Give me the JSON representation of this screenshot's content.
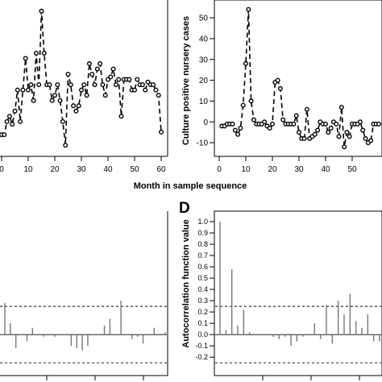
{
  "shared": {
    "xlabel": "Month in sample sequence"
  },
  "chart_data": [
    {
      "id": "left-series",
      "type": "line",
      "xlabel": "",
      "ylabel": "",
      "x_ticks": [
        0,
        10,
        20,
        30,
        40,
        50,
        60
      ],
      "ylim": [
        -2,
        55
      ],
      "x": [
        0,
        1,
        2,
        3,
        4,
        5,
        6,
        7,
        8,
        9,
        10,
        11,
        12,
        13,
        14,
        15,
        16,
        17,
        18,
        19,
        20,
        21,
        22,
        23,
        24,
        25,
        26,
        27,
        28,
        29,
        30,
        31,
        32,
        33,
        34,
        35,
        36,
        37,
        38,
        39,
        40,
        41,
        42,
        43,
        44,
        45,
        46,
        47,
        48,
        49,
        50,
        51,
        52,
        53,
        54,
        55,
        56,
        57,
        58,
        59,
        60
      ],
      "y": [
        5,
        5,
        10,
        12,
        9,
        14,
        22,
        10,
        22,
        34,
        22,
        24,
        18,
        36,
        24,
        52,
        36,
        24,
        24,
        18,
        20,
        24,
        18,
        10,
        1,
        28,
        24,
        16,
        14,
        16,
        22,
        24,
        20,
        32,
        28,
        24,
        30,
        32,
        24,
        20,
        26,
        27,
        30,
        24,
        26,
        12,
        26,
        26,
        26,
        22,
        22,
        26,
        24,
        24,
        22,
        25,
        24,
        24,
        22,
        20,
        6
      ]
    },
    {
      "id": "right-series",
      "type": "line",
      "ylabel": "Culture positive nursery cases",
      "x_ticks": [
        0,
        10,
        20,
        30,
        40,
        50
      ],
      "y_ticks": [
        -10,
        0,
        10,
        20,
        30,
        40,
        50
      ],
      "xlim": [
        0,
        60
      ],
      "ylim": [
        -15,
        57
      ],
      "x": [
        1,
        2,
        3,
        4,
        5,
        6,
        7,
        8,
        9,
        10,
        11,
        12,
        13,
        14,
        15,
        16,
        17,
        18,
        19,
        20,
        21,
        22,
        23,
        24,
        25,
        26,
        27,
        28,
        29,
        30,
        31,
        32,
        33,
        34,
        35,
        36,
        37,
        38,
        39,
        40,
        41,
        42,
        43,
        44,
        45,
        46,
        47,
        48,
        49,
        50,
        51,
        52,
        53,
        54,
        55,
        56,
        57,
        58,
        59,
        60
      ],
      "y": [
        -2,
        -2,
        -1,
        -1,
        -1,
        -4,
        -6,
        -3,
        8,
        28,
        54,
        10,
        1,
        -1,
        -1,
        -1,
        0,
        -2,
        -3,
        -1,
        19,
        20,
        16,
        1,
        -1,
        -1,
        -1,
        -1,
        3,
        -5,
        -8,
        -8,
        6,
        -8,
        -7,
        -6,
        -4,
        0,
        -1,
        -1,
        -5,
        -3,
        0,
        -1,
        -7,
        7,
        -12,
        -5,
        -7,
        -1,
        -1,
        -1,
        0,
        -4,
        -8,
        -10,
        -9,
        -1,
        -1,
        -1
      ]
    },
    {
      "id": "acf-left",
      "type": "bar",
      "ylabel": "",
      "lags": [
        1,
        2,
        3,
        4,
        5,
        6,
        7,
        8,
        9,
        10,
        11,
        12,
        13,
        14,
        15,
        16,
        17,
        18,
        19,
        20,
        21,
        22,
        23,
        24,
        25,
        26,
        27,
        28,
        29,
        30
      ],
      "values": [
        0.28,
        0.1,
        -0.12,
        0,
        -0.06,
        0.06,
        0,
        -0.02,
        0,
        -0.02,
        0,
        0,
        -0.1,
        -0.12,
        -0.14,
        -0.1,
        0,
        0,
        0.08,
        0.14,
        0,
        0.3,
        0,
        -0.04,
        -0.02,
        -0.08,
        0,
        0.06,
        0,
        0.02
      ],
      "ci": 0.25,
      "ylim": [
        -0.32,
        1.05
      ]
    },
    {
      "id": "acf-right",
      "type": "bar",
      "panel_label": "D",
      "ylabel": "Autocorrelation function value",
      "y_ticks": [
        -0.2,
        -0.1,
        0.0,
        0.1,
        0.2,
        0.3,
        0.4,
        0.5,
        0.6,
        0.7,
        0.8,
        0.9,
        1.0
      ],
      "lags": [
        0,
        1,
        2,
        3,
        4,
        5,
        6,
        7,
        8,
        9,
        10,
        11,
        12,
        13,
        14,
        15,
        16,
        17,
        18,
        19,
        20,
        21,
        22,
        23,
        24,
        25,
        26,
        27
      ],
      "values": [
        1.0,
        0.04,
        0.58,
        0.08,
        0.22,
        0.02,
        0,
        0,
        0,
        -0.02,
        -0.04,
        -0.02,
        -0.1,
        -0.06,
        -0.02,
        0,
        0.1,
        -0.04,
        0.26,
        -0.08,
        0.3,
        0.18,
        0.36,
        0.12,
        0.06,
        0.18,
        -0.06,
        -0.06
      ],
      "ci": 0.25,
      "ylim": [
        -0.32,
        1.05
      ]
    }
  ]
}
